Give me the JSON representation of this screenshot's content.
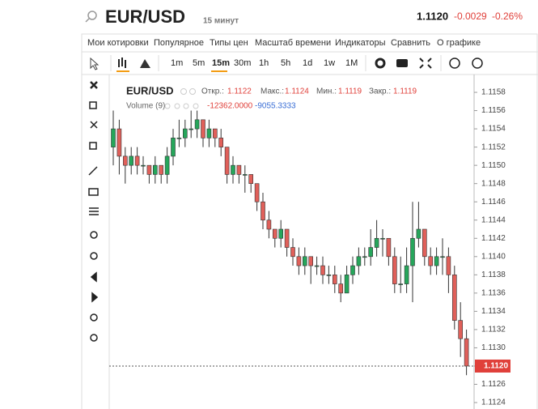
{
  "header": {
    "symbol": "EUR/USD",
    "interval": "15 минут",
    "price": "1.1120",
    "change": "-0.0029",
    "change_pct": "-0.26%"
  },
  "menu": [
    "Мои котировки",
    "Популярное",
    "Типы цен",
    "Масштаб времени",
    "Индикаторы",
    "Сравнить",
    "О графике"
  ],
  "toolbar": [
    "1m",
    "5m",
    "15m",
    "30m",
    "1h",
    "5h",
    "1d",
    "1w",
    "1M"
  ],
  "legend": {
    "symbol": "EUR/USD",
    "open_label": "Откр.:",
    "open": "1.1122",
    "high_label": "Макс.:",
    "high": "1.1124",
    "low_label": "Мин.:",
    "low": "1.1119",
    "close_label": "Закр.:",
    "close": "1.1119",
    "volume_label": "Volume (9)",
    "volume_1": "-12362.0000",
    "volume_2": "-9055.3333"
  },
  "chart_data": {
    "type": "candlestick",
    "up_color": "#26a65b",
    "down_color": "#e0605a",
    "open": [
      1.1152,
      1.1154,
      1.1151,
      1.115,
      1.1151,
      1.115,
      1.115,
      1.1149,
      1.115,
      1.1149,
      1.1151,
      1.1153,
      1.1153,
      1.1154,
      1.1154,
      1.1155,
      1.1153,
      1.1154,
      1.1153,
      1.1152,
      1.1149,
      1.115,
      1.1149,
      1.1149,
      1.1148,
      1.1146,
      1.1144,
      1.1143,
      1.1142,
      1.1143,
      1.1141,
      1.114,
      1.1139,
      1.114,
      1.1139,
      1.1139,
      1.1138,
      1.1138,
      1.1137,
      1.1136,
      1.1138,
      1.1139,
      1.114,
      1.114,
      1.1141,
      1.1142,
      1.1142,
      1.114,
      1.1137,
      1.1137,
      1.1139,
      1.1142,
      1.1143,
      1.114,
      1.1139,
      1.114,
      1.114,
      1.1138,
      1.1133,
      1.1131
    ],
    "high": [
      1.1156,
      1.1155,
      1.1152,
      1.1152,
      1.1152,
      1.1151,
      1.115,
      1.1151,
      1.115,
      1.1152,
      1.1154,
      1.1155,
      1.1155,
      1.1156,
      1.1156,
      1.1155,
      1.1155,
      1.1154,
      1.1154,
      1.1152,
      1.1151,
      1.115,
      1.115,
      1.1149,
      1.1148,
      1.1147,
      1.1145,
      1.1143,
      1.1144,
      1.1143,
      1.1142,
      1.1141,
      1.1141,
      1.114,
      1.114,
      1.114,
      1.1139,
      1.1139,
      1.1138,
      1.1139,
      1.114,
      1.1141,
      1.1141,
      1.1143,
      1.1144,
      1.1143,
      1.1142,
      1.1141,
      1.114,
      1.1141,
      1.1146,
      1.1146,
      1.1143,
      1.1141,
      1.1141,
      1.1142,
      1.1141,
      1.1139,
      1.1135,
      1.1132
    ],
    "low": [
      1.115,
      1.1149,
      1.1148,
      1.1149,
      1.1149,
      1.1149,
      1.1148,
      1.1148,
      1.1148,
      1.1148,
      1.115,
      1.1152,
      1.1152,
      1.1153,
      1.1153,
      1.1152,
      1.1152,
      1.1152,
      1.1151,
      1.1148,
      1.1148,
      1.1148,
      1.1147,
      1.1147,
      1.1145,
      1.1143,
      1.1142,
      1.1141,
      1.1141,
      1.114,
      1.1139,
      1.1138,
      1.1138,
      1.1137,
      1.1138,
      1.1137,
      1.1137,
      1.1136,
      1.1135,
      1.1136,
      1.1137,
      1.1138,
      1.1139,
      1.1139,
      1.114,
      1.114,
      1.1139,
      1.1136,
      1.1136,
      1.1136,
      1.1135,
      1.1141,
      1.1139,
      1.1138,
      1.1138,
      1.1138,
      1.1136,
      1.1132,
      1.1129,
      1.1127
    ],
    "close": [
      1.1154,
      1.1151,
      1.115,
      1.1151,
      1.115,
      1.115,
      1.1149,
      1.115,
      1.1149,
      1.1151,
      1.1153,
      1.1153,
      1.1154,
      1.1154,
      1.1155,
      1.1153,
      1.1154,
      1.1153,
      1.1152,
      1.1149,
      1.115,
      1.1149,
      1.1149,
      1.1148,
      1.1146,
      1.1144,
      1.1143,
      1.1142,
      1.1143,
      1.1141,
      1.114,
      1.1139,
      1.114,
      1.1139,
      1.1139,
      1.1138,
      1.1138,
      1.1137,
      1.1136,
      1.1138,
      1.1139,
      1.114,
      1.114,
      1.1141,
      1.1142,
      1.1142,
      1.114,
      1.1137,
      1.1137,
      1.1139,
      1.1142,
      1.1143,
      1.114,
      1.1139,
      1.114,
      1.114,
      1.1138,
      1.1133,
      1.1131,
      1.1128
    ],
    "ylim": [
      1.1123,
      1.116
    ],
    "yticks": [
      1.1158,
      1.1156,
      1.1154,
      1.1152,
      {
        "value": 1.115,
        "label": "1.1150"
      },
      1.1148,
      1.1146,
      1.1144,
      1.1142,
      {
        "value": 1.114,
        "label": "1.1140"
      },
      1.1138,
      1.1136,
      1.1134,
      1.1132,
      {
        "value": 1.113,
        "label": "1.1130"
      },
      1.1128,
      1.1126,
      1.1124
    ]
  }
}
